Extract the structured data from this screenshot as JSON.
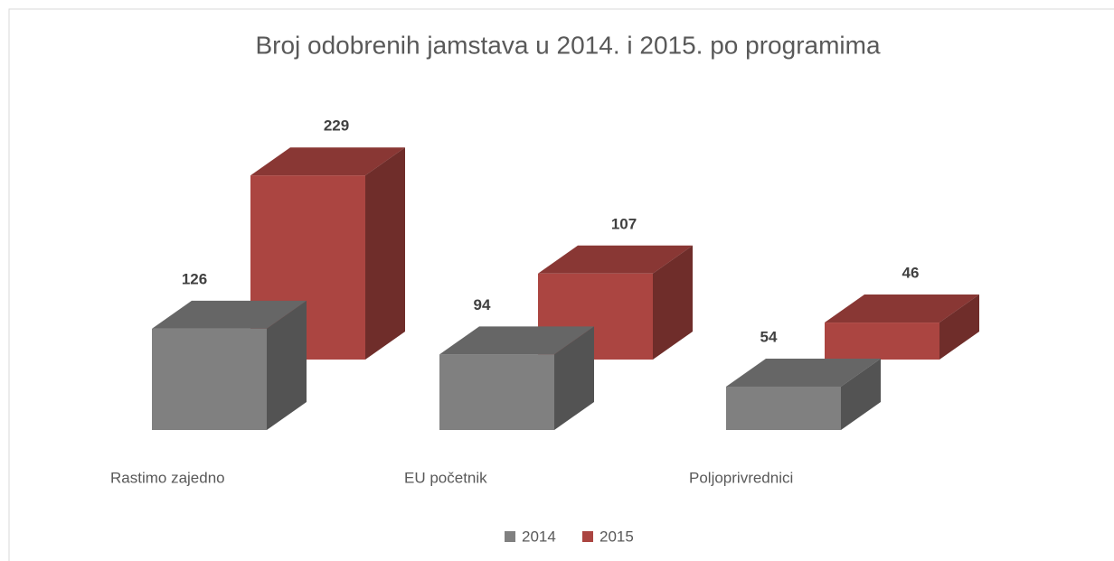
{
  "chart_data": {
    "type": "bar3d",
    "title": "Broj odobrenih jamstava u 2014. i 2015. po programima",
    "categories": [
      "Rastimo zajedno",
      "EU početnik",
      "Poljoprivrednici"
    ],
    "series": [
      {
        "name": "2014",
        "color": "#808080",
        "values": [
          126,
          94,
          54
        ]
      },
      {
        "name": "2015",
        "color": "#ab4541",
        "values": [
          229,
          107,
          46
        ]
      }
    ],
    "legend": "bottom"
  }
}
